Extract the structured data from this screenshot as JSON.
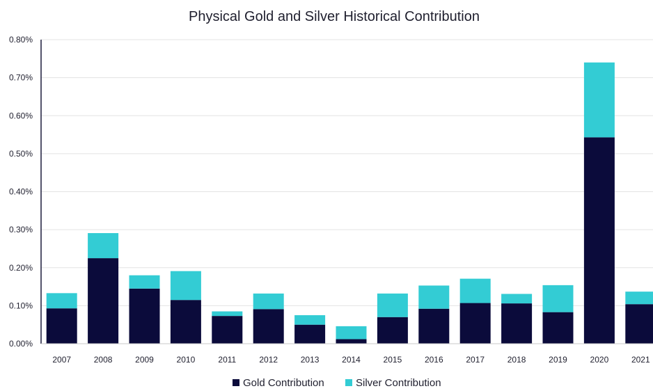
{
  "chart_data": {
    "type": "bar",
    "stacked": true,
    "title": "Physical Gold and Silver Historical Contribution",
    "xlabel": "",
    "ylabel": "",
    "categories": [
      "2007",
      "2008",
      "2009",
      "2010",
      "2011",
      "2012",
      "2013",
      "2014",
      "2015",
      "2016",
      "2017",
      "2018",
      "2019",
      "2020",
      "2021"
    ],
    "series": [
      {
        "name": "Gold Contribution",
        "color": "#0b0b3b",
        "values": [
          0.093,
          0.225,
          0.145,
          0.115,
          0.073,
          0.091,
          0.05,
          0.012,
          0.07,
          0.092,
          0.107,
          0.106,
          0.083,
          0.543,
          0.104
        ]
      },
      {
        "name": "Silver Contribution",
        "color": "#33ccd4",
        "values": [
          0.04,
          0.066,
          0.035,
          0.076,
          0.012,
          0.041,
          0.025,
          0.034,
          0.062,
          0.061,
          0.064,
          0.025,
          0.071,
          0.197,
          0.033
        ]
      }
    ],
    "y_ticks": [
      "0.00%",
      "0.10%",
      "0.20%",
      "0.30%",
      "0.40%",
      "0.50%",
      "0.60%",
      "0.70%",
      "0.80%"
    ],
    "y_unit": "%",
    "ylim": [
      0,
      0.8
    ],
    "grid": true,
    "legend_position": "bottom"
  }
}
